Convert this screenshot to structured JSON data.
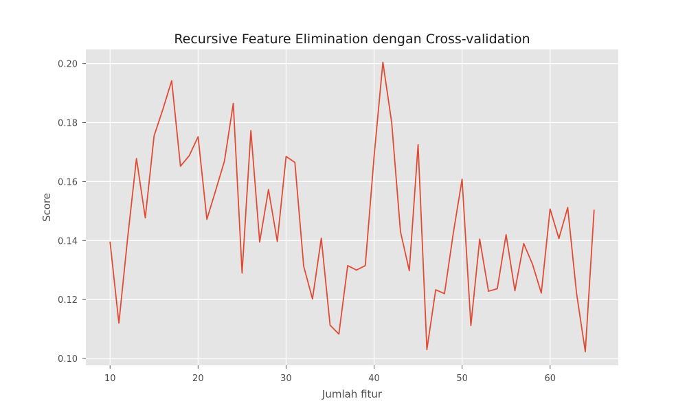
{
  "chart_data": {
    "type": "line",
    "title": "Recursive Feature Elimination dengan Cross-validation",
    "xlabel": "Jumlah fitur",
    "ylabel": "Score",
    "xlim": [
      7.25,
      67.75
    ],
    "ylim": [
      0.0977,
      0.2048
    ],
    "xticks": [
      10,
      20,
      30,
      40,
      50,
      60
    ],
    "yticks": [
      0.1,
      0.12,
      0.14,
      0.16,
      0.18,
      0.2
    ],
    "xtick_labels": [
      "10",
      "20",
      "30",
      "40",
      "50",
      "60"
    ],
    "ytick_labels": [
      "0.10",
      "0.12",
      "0.14",
      "0.16",
      "0.18",
      "0.20"
    ],
    "grid": true,
    "line_color": "#E24A33",
    "background_color": "#E5E5E5",
    "series": [
      {
        "x": [
          10,
          11,
          12,
          13,
          14,
          15,
          16,
          17,
          18,
          19,
          20,
          21,
          22,
          23,
          24,
          25,
          26,
          27,
          28,
          29,
          30,
          31,
          32,
          33,
          34,
          35,
          36,
          37,
          38,
          39,
          40,
          41,
          42,
          43,
          44,
          45,
          46,
          47,
          48,
          49,
          50,
          51,
          52,
          53,
          54,
          55,
          56,
          57,
          58,
          59,
          60,
          61,
          62,
          63,
          64,
          65
        ],
        "values": [
          0.1395,
          0.112,
          0.141,
          0.1678,
          0.1477,
          0.1755,
          0.1845,
          0.1942,
          0.1652,
          0.1688,
          0.1752,
          0.1472,
          0.157,
          0.167,
          0.1865,
          0.129,
          0.1773,
          0.1395,
          0.1573,
          0.1397,
          0.1685,
          0.1665,
          0.1313,
          0.1202,
          0.1408,
          0.1113,
          0.1083,
          0.1315,
          0.13,
          0.1315,
          0.1685,
          0.2005,
          0.18,
          0.143,
          0.1298,
          0.1725,
          0.103,
          0.1233,
          0.122,
          0.1425,
          0.1608,
          0.1112,
          0.1405,
          0.1228,
          0.1237,
          0.142,
          0.123,
          0.139,
          0.132,
          0.1222,
          0.1507,
          0.1407,
          0.1512,
          0.1223,
          0.1023,
          0.1503
        ]
      }
    ]
  }
}
